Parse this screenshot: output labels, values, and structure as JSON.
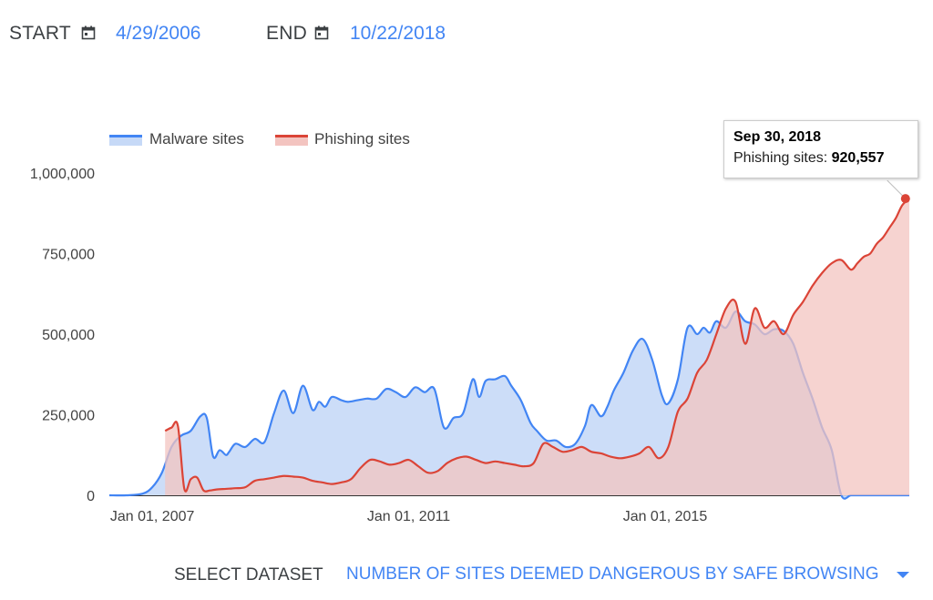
{
  "range": {
    "start_label": "START",
    "start_value": "4/29/2006",
    "end_label": "END",
    "end_value": "10/22/2018",
    "icon": "calendar-icon"
  },
  "dataset": {
    "label": "SELECT DATASET",
    "value": "NUMBER OF SITES DEEMED DANGEROUS BY SAFE BROWSING",
    "icon": "chevron-down-icon"
  },
  "tooltip": {
    "date": "Sep 30, 2018",
    "series_label": "Phishing sites:",
    "value": "920,557"
  },
  "chart_data": {
    "type": "area",
    "title": "",
    "xlabel": "",
    "ylabel": "",
    "x_range": [
      2006.33,
      2018.81
    ],
    "ylim": [
      0,
      1000000
    ],
    "y_ticks": [
      0,
      250000,
      500000,
      750000,
      1000000
    ],
    "y_tick_labels": [
      "0",
      "250,000",
      "500,000",
      "750,000",
      "1,000,000"
    ],
    "x_ticks": [
      2007.0,
      2011.0,
      2015.0
    ],
    "x_tick_labels": [
      "Jan 01, 2007",
      "Jan 01, 2011",
      "Jan 01, 2015"
    ],
    "grid": false,
    "legend_position": "top-left",
    "series": [
      {
        "name": "Malware sites",
        "color": "#4285f4",
        "fill": "#c6d9f7",
        "x": [
          2006.33,
          2006.6,
          2006.85,
          2007.0,
          2007.15,
          2007.3,
          2007.45,
          2007.6,
          2007.75,
          2007.85,
          2007.95,
          2008.05,
          2008.15,
          2008.2,
          2008.3,
          2008.45,
          2008.6,
          2008.75,
          2008.9,
          2009.05,
          2009.2,
          2009.35,
          2009.5,
          2009.6,
          2009.7,
          2009.8,
          2009.95,
          2010.05,
          2010.2,
          2010.35,
          2010.5,
          2010.65,
          2010.8,
          2010.95,
          2011.1,
          2011.25,
          2011.4,
          2011.55,
          2011.7,
          2011.85,
          2012.0,
          2012.1,
          2012.2,
          2012.35,
          2012.5,
          2012.6,
          2012.75,
          2012.9,
          2013.0,
          2013.15,
          2013.3,
          2013.45,
          2013.6,
          2013.75,
          2013.85,
          2014.0,
          2014.1,
          2014.2,
          2014.35,
          2014.5,
          2014.65,
          2014.8,
          2014.95,
          2015.05,
          2015.2,
          2015.35,
          2015.5,
          2015.6,
          2015.7,
          2015.8,
          2015.95,
          2016.1,
          2016.25,
          2016.4,
          2016.55,
          2016.7,
          2016.85,
          2017.0,
          2017.15,
          2017.3,
          2017.45,
          2017.6,
          2017.75,
          2017.9,
          2018.05,
          2018.15,
          2018.3,
          2018.45,
          2018.6,
          2018.81
        ],
        "y": [
          0,
          0,
          5000,
          25000,
          70000,
          150000,
          185000,
          200000,
          245000,
          240000,
          120000,
          140000,
          125000,
          135000,
          160000,
          150000,
          175000,
          165000,
          255000,
          325000,
          255000,
          340000,
          265000,
          290000,
          275000,
          305000,
          295000,
          290000,
          295000,
          300000,
          300000,
          330000,
          320000,
          305000,
          335000,
          320000,
          330000,
          210000,
          240000,
          255000,
          360000,
          305000,
          355000,
          360000,
          370000,
          340000,
          295000,
          225000,
          200000,
          170000,
          170000,
          150000,
          160000,
          215000,
          280000,
          245000,
          275000,
          325000,
          380000,
          450000,
          485000,
          420000,
          310000,
          285000,
          360000,
          520000,
          500000,
          520000,
          505000,
          540000,
          520000,
          570000,
          540000,
          530000,
          500000,
          515000,
          510000,
          470000,
          380000,
          300000,
          210000,
          140000,
          0,
          0,
          0,
          0,
          0,
          0,
          0,
          0
        ],
        "note": "values after 2017.6 are not drawn"
      },
      {
        "name": "Phishing sites",
        "color": "#db4437",
        "fill": "#f3c4c0",
        "x": [
          2007.2,
          2007.3,
          2007.4,
          2007.5,
          2007.6,
          2007.7,
          2007.8,
          2007.9,
          2008.0,
          2008.15,
          2008.3,
          2008.45,
          2008.6,
          2008.75,
          2008.9,
          2009.05,
          2009.2,
          2009.35,
          2009.5,
          2009.65,
          2009.8,
          2009.95,
          2010.1,
          2010.25,
          2010.4,
          2010.55,
          2010.7,
          2010.85,
          2011.0,
          2011.15,
          2011.3,
          2011.45,
          2011.6,
          2011.75,
          2011.9,
          2012.05,
          2012.2,
          2012.35,
          2012.5,
          2012.65,
          2012.8,
          2012.95,
          2013.1,
          2013.25,
          2013.4,
          2013.55,
          2013.7,
          2013.85,
          2014.0,
          2014.15,
          2014.3,
          2014.45,
          2014.6,
          2014.75,
          2014.9,
          2015.05,
          2015.2,
          2015.35,
          2015.5,
          2015.65,
          2015.8,
          2015.95,
          2016.1,
          2016.25,
          2016.4,
          2016.55,
          2016.7,
          2016.85,
          2017.0,
          2017.15,
          2017.3,
          2017.45,
          2017.6,
          2017.75,
          2017.9,
          2018.0,
          2018.1,
          2018.2,
          2018.3,
          2018.4,
          2018.5,
          2018.6,
          2018.7,
          2018.81
        ],
        "y": [
          200000,
          210000,
          215000,
          20000,
          50000,
          55000,
          15000,
          15000,
          18000,
          20000,
          22000,
          25000,
          45000,
          50000,
          55000,
          60000,
          58000,
          55000,
          45000,
          40000,
          35000,
          40000,
          50000,
          85000,
          110000,
          105000,
          95000,
          100000,
          110000,
          90000,
          70000,
          75000,
          100000,
          115000,
          120000,
          110000,
          100000,
          105000,
          100000,
          95000,
          90000,
          100000,
          160000,
          150000,
          135000,
          140000,
          150000,
          135000,
          130000,
          120000,
          115000,
          120000,
          130000,
          150000,
          115000,
          150000,
          260000,
          300000,
          380000,
          420000,
          500000,
          580000,
          600000,
          470000,
          580000,
          520000,
          540000,
          500000,
          560000,
          600000,
          650000,
          690000,
          720000,
          730000,
          700000,
          720000,
          740000,
          750000,
          780000,
          800000,
          830000,
          860000,
          900000,
          920557
        ]
      }
    ],
    "highlight_point": {
      "series": "Phishing sites",
      "x": 2018.75,
      "y": 920557
    }
  }
}
